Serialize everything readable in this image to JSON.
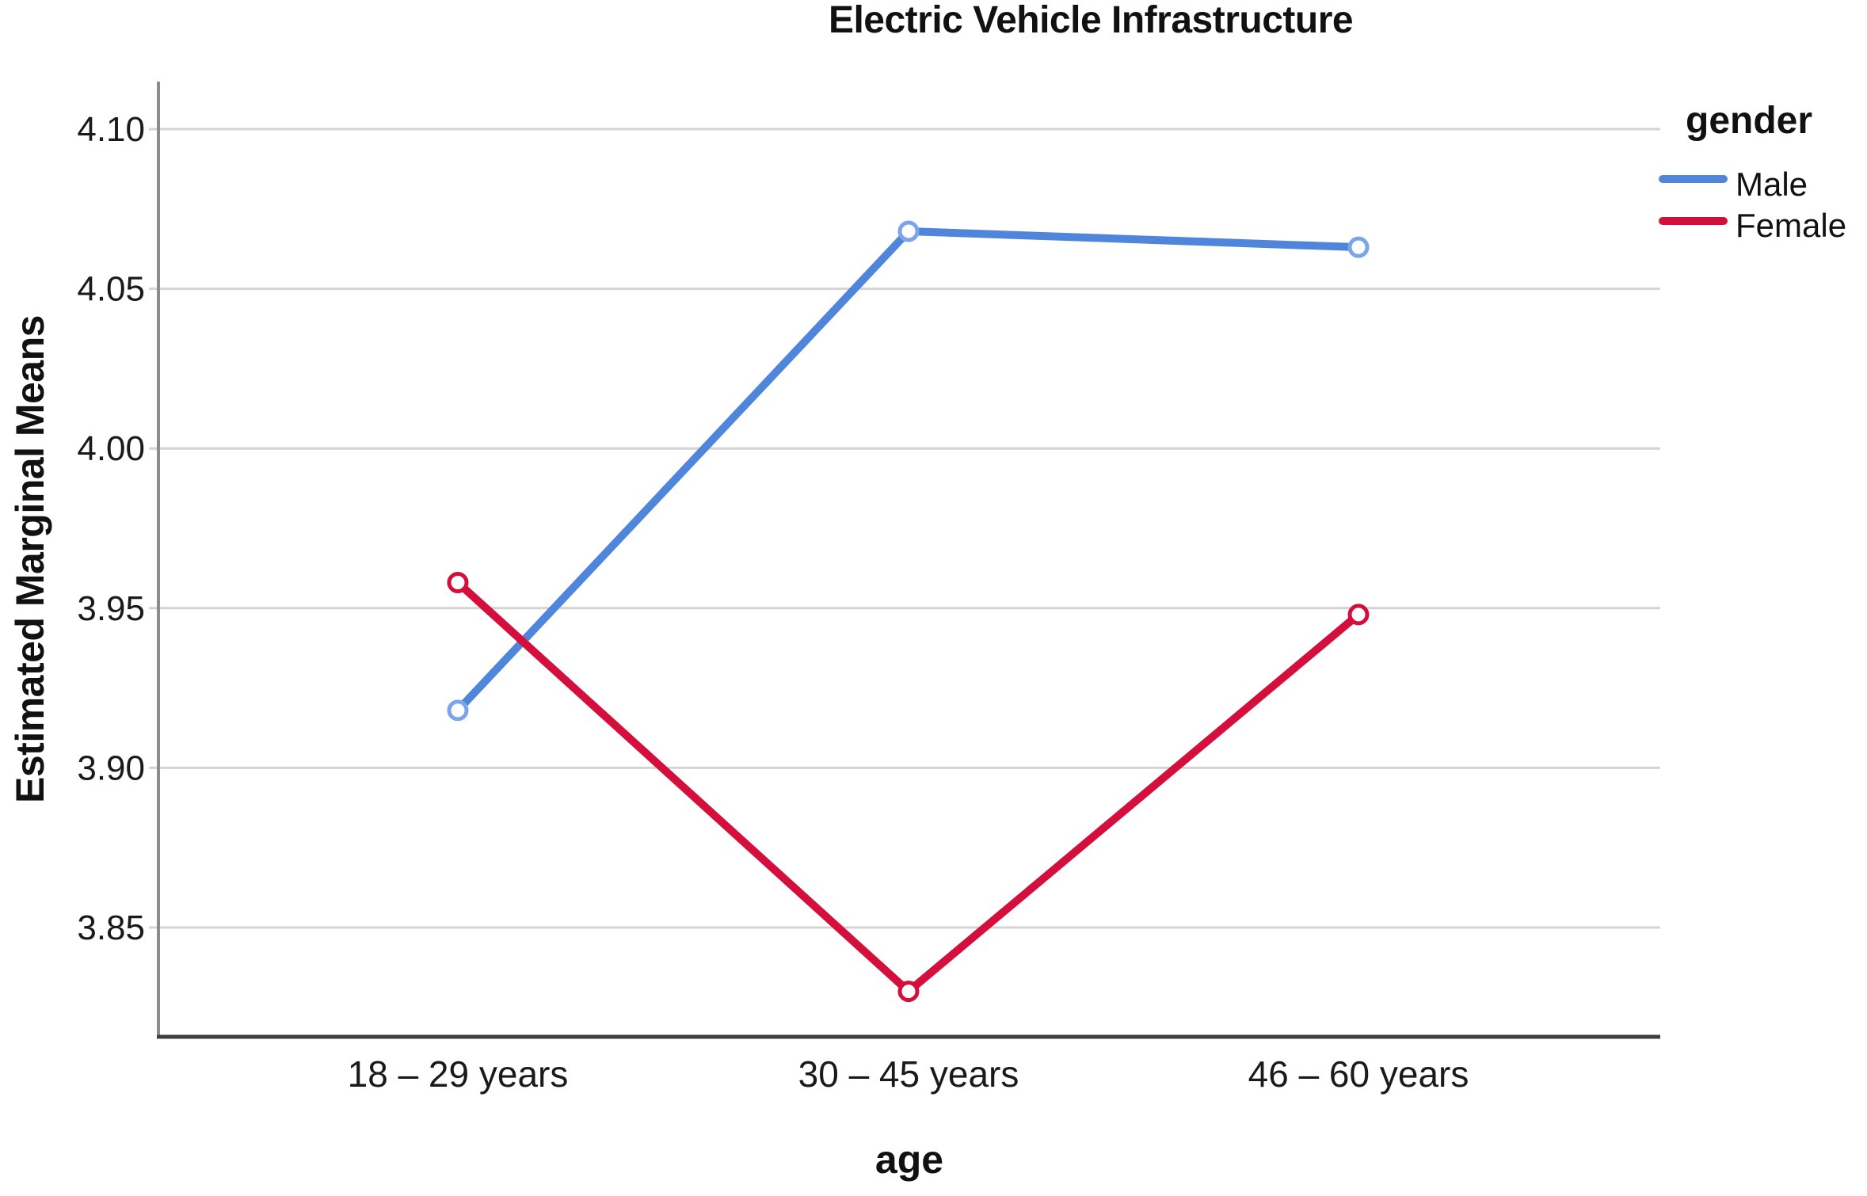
{
  "chart_data": {
    "type": "line",
    "title": "Electric Vehicle Infrastructure",
    "xlabel": "age",
    "ylabel": "Estimated Marginal Means",
    "categories": [
      "18 – 29 years",
      "30 – 45 years",
      "46 – 60 years"
    ],
    "series": [
      {
        "name": "Male",
        "values": [
          3.918,
          4.068,
          4.063
        ],
        "color": "#4F86DB",
        "marker_ring": "#7CA4EA"
      },
      {
        "name": "Female",
        "values": [
          3.958,
          3.83,
          3.948
        ],
        "color": "#D50F3C",
        "marker_ring": "#D50F3C"
      }
    ],
    "y_ticks": [
      "4.10",
      "4.05",
      "4.00",
      "3.95",
      "3.90",
      "3.85"
    ],
    "y_tick_values": [
      4.1,
      4.05,
      4.0,
      3.95,
      3.9,
      3.85
    ],
    "ylim": [
      3.816,
      4.115
    ],
    "grid": "horizontal-gridlines",
    "legend": {
      "title": "gender",
      "position": "right-top-outside"
    },
    "marker_style": "open-circle"
  },
  "styles": {
    "gridline_color": "#D4D4D4",
    "y_axis_color": "#8C8C8C",
    "x_axis_color": "#3F3F3F",
    "tick_text_color": "#1A1A1A",
    "background": "#FFFFFF"
  }
}
